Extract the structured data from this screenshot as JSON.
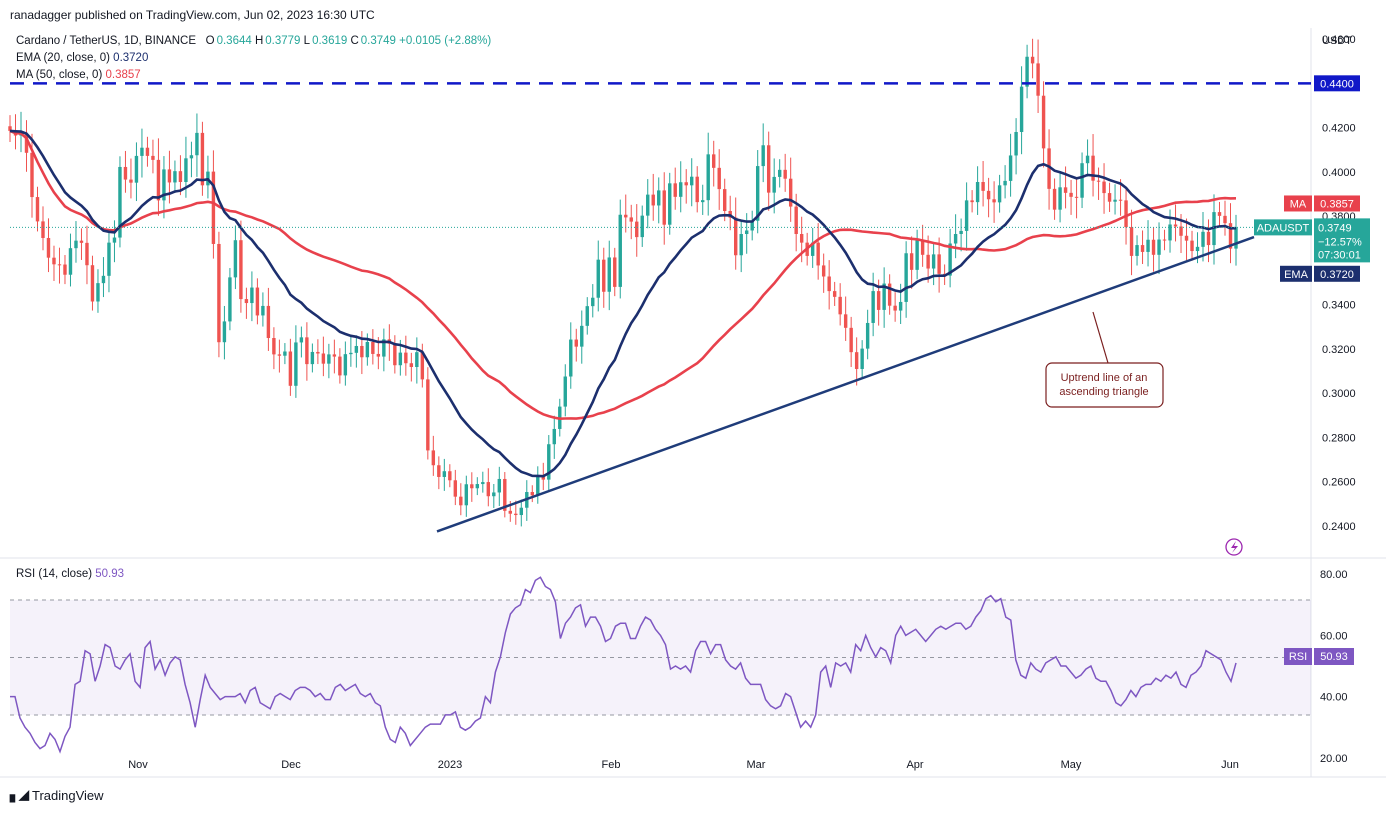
{
  "publisher": "ranadagger published on TradingView.com, Jun 02, 2023 16:30 UTC",
  "colors": {
    "up": "#26a69a",
    "down": "#ef5350",
    "ema": "#1c2f6e",
    "ma": "#e8414c",
    "rsi": "#7e57c2",
    "trend": "#1f3c7a",
    "resistance": "#1018c8",
    "price": "#26a69a"
  },
  "legend": {
    "symbol": "Cardano / TetherUS, 1D, BINANCE",
    "o_label": "O",
    "o": "0.3644",
    "h_label": "H",
    "h": "0.3779",
    "l_label": "L",
    "l": "0.3619",
    "c_label": "C",
    "c": "0.3749",
    "change": "+0.0105 (+2.88%)",
    "ema_label": "EMA (20, close, 0)",
    "ema_value": "0.3720",
    "ma_label": "MA (50, close, 0)",
    "ma_value": "0.3857"
  },
  "rsi_legend": {
    "label": "RSI (14, close)",
    "value": "50.93"
  },
  "footer": {
    "brand": "TradingView"
  },
  "chart_data": {
    "type": "candlestick",
    "symbol": "ADAUSDT",
    "currency": "USDT",
    "timeframe": "1D",
    "ylim": [
      0.23,
      0.465
    ],
    "yticks": [
      "0.4600",
      "0.4200",
      "0.4000",
      "0.3800",
      "0.3400",
      "0.3200",
      "0.3000",
      "0.2800",
      "0.2600",
      "0.2400"
    ],
    "xticks": [
      "Nov",
      "Dec",
      "2023",
      "Feb",
      "Mar",
      "Apr",
      "May",
      "Jun"
    ],
    "close_series": [
      0.4185,
      0.4164,
      0.4171,
      0.4086,
      0.3886,
      0.3776,
      0.3701,
      0.3612,
      0.3582,
      0.3581,
      0.3535,
      0.3655,
      0.3689,
      0.3679,
      0.3578,
      0.3414,
      0.3497,
      0.353,
      0.368,
      0.3703,
      0.4022,
      0.3965,
      0.3951,
      0.4072,
      0.4109,
      0.4072,
      0.4054,
      0.3871,
      0.4011,
      0.3952,
      0.4003,
      0.3954,
      0.4061,
      0.4075,
      0.4176,
      0.3939,
      0.4001,
      0.3674,
      0.323,
      0.3324,
      0.3523,
      0.3691,
      0.3425,
      0.3407,
      0.3477,
      0.3351,
      0.3394,
      0.3249,
      0.3175,
      0.3169,
      0.3188,
      0.3033,
      0.3229,
      0.3252,
      0.3131,
      0.3186,
      0.3179,
      0.3133,
      0.3175,
      0.3165,
      0.308,
      0.3176,
      0.3182,
      0.3213,
      0.3162,
      0.3231,
      0.3177,
      0.3165,
      0.3243,
      0.3223,
      0.3126,
      0.3183,
      0.3135,
      0.3118,
      0.3185,
      0.3062,
      0.2741,
      0.2674,
      0.2621,
      0.2647,
      0.2606,
      0.2532,
      0.2493,
      0.2588,
      0.257,
      0.2589,
      0.2598,
      0.2534,
      0.2551,
      0.2612,
      0.2468,
      0.2455,
      0.2449,
      0.2482,
      0.2553,
      0.2538,
      0.2622,
      0.2609,
      0.2769,
      0.2838,
      0.2939,
      0.3075,
      0.3242,
      0.321,
      0.3304,
      0.3393,
      0.3431,
      0.3603,
      0.3458,
      0.3613,
      0.348,
      0.3806,
      0.3794,
      0.3775,
      0.3705,
      0.3802,
      0.3897,
      0.3848,
      0.3916,
      0.3761,
      0.3948,
      0.3887,
      0.3953,
      0.3939,
      0.3978,
      0.3863,
      0.3872,
      0.4079,
      0.4018,
      0.3922,
      0.3823,
      0.3793,
      0.3623,
      0.3719,
      0.3735,
      0.3779,
      0.4026,
      0.412,
      0.3906,
      0.3977,
      0.4009,
      0.3969,
      0.3843,
      0.3719,
      0.368,
      0.362,
      0.368,
      0.3577,
      0.3527,
      0.3461,
      0.3435,
      0.3356,
      0.3295,
      0.3185,
      0.3109,
      0.3201,
      0.3317,
      0.3461,
      0.3376,
      0.3495,
      0.3395,
      0.3373,
      0.3412,
      0.3632,
      0.3557,
      0.3694,
      0.3625,
      0.3563,
      0.3627,
      0.3539,
      0.3531,
      0.3676,
      0.3719,
      0.3733,
      0.3871,
      0.3863,
      0.3954,
      0.3914,
      0.3876,
      0.3862,
      0.3939,
      0.3959,
      0.4074,
      0.418,
      0.4385,
      0.452,
      0.449,
      0.4344,
      0.4106,
      0.3923,
      0.3829,
      0.393,
      0.3905,
      0.3887,
      0.3883,
      0.4039,
      0.4073,
      0.396,
      0.3956,
      0.3904,
      0.3865,
      0.3874,
      0.3871,
      0.375,
      0.362,
      0.3669,
      0.3638,
      0.3693,
      0.3625,
      0.3694,
      0.369,
      0.3762,
      0.3753,
      0.3711,
      0.3689,
      0.3642,
      0.3661,
      0.3729,
      0.3669,
      0.3818,
      0.3801,
      0.3768,
      0.3653,
      0.3749
    ],
    "ema20": {
      "name": "EMA (20, close, 0)",
      "last": 0.372
    },
    "ma50": {
      "name": "MA (50, close, 0)",
      "last": 0.3857
    },
    "resistance_level": 0.44,
    "trendline": {
      "start": [
        "2022-12-30",
        0.2375
      ],
      "end": [
        "2023-06-03",
        0.3705
      ]
    },
    "price_tags": [
      {
        "label": "0.4400",
        "value": 0.44
      },
      {
        "label": "MA",
        "text": "0.3857",
        "value": 0.3857
      },
      {
        "label": "ADAUSDT",
        "text": "0.3749",
        "sub1": "−12.57%",
        "sub2": "07:30:01",
        "value": 0.3749
      },
      {
        "label": "EMA",
        "text": "0.3720",
        "value": 0.372
      }
    ],
    "annotation": {
      "line1": "Uptrend line of an",
      "line2": "ascending triangle"
    },
    "rsi": {
      "name": "RSI (14, close)",
      "last": 50.93,
      "ylim": [
        16,
        84
      ],
      "yticks": [
        "80.00",
        "60.00",
        "40.00",
        "20.00"
      ],
      "overbought": 70,
      "oversold": 30,
      "last_label": "RSI",
      "last_text": "50.93",
      "values": [
        40,
        40,
        33,
        30,
        28,
        25,
        23,
        24,
        28,
        26,
        22,
        27,
        30,
        44,
        45,
        55,
        54,
        45,
        50,
        57,
        56,
        50,
        49,
        52,
        54,
        45,
        43,
        56,
        58,
        49,
        52,
        47,
        51,
        53,
        52,
        44,
        38,
        30,
        39,
        47,
        43,
        41,
        39,
        40,
        40,
        40,
        41,
        38,
        42,
        43,
        38,
        37,
        36,
        40,
        41,
        40,
        39,
        42,
        43,
        43,
        42,
        40,
        41,
        39,
        39,
        43,
        44,
        42,
        43,
        44,
        41,
        40,
        41,
        38,
        37,
        30,
        26,
        25,
        30,
        28,
        24,
        26,
        28,
        30,
        31,
        31,
        31,
        34,
        34,
        35,
        30,
        29,
        30,
        32,
        33,
        40,
        38,
        48,
        53,
        61,
        67,
        69,
        70,
        75,
        74,
        78,
        79,
        76,
        75,
        71,
        59,
        64,
        66,
        69,
        70,
        63,
        66,
        66,
        63,
        58,
        59,
        63,
        64,
        64,
        59,
        59,
        63,
        66,
        65,
        62,
        60,
        57,
        49,
        50,
        49,
        50,
        48,
        55,
        58,
        58,
        54,
        57,
        57,
        52,
        50,
        49,
        51,
        46,
        44,
        44,
        44,
        39,
        37,
        36,
        37,
        41,
        40,
        35,
        30,
        32,
        30,
        34,
        48,
        50,
        43,
        51,
        50,
        51,
        48,
        57,
        55,
        60,
        56,
        53,
        56,
        55,
        51,
        60,
        63,
        60,
        61,
        62,
        60,
        58,
        60,
        62,
        63,
        62,
        63,
        64,
        64,
        62,
        63,
        66,
        68,
        72,
        73,
        71,
        72,
        66,
        65,
        52,
        47,
        46,
        51,
        49,
        48,
        51,
        52,
        53,
        50,
        50,
        48,
        46,
        47,
        49,
        50,
        46,
        45,
        45,
        42,
        38,
        37,
        39,
        42,
        40,
        43,
        44,
        44,
        46,
        45,
        47,
        46,
        48,
        44,
        43,
        47,
        48,
        50,
        55,
        54,
        53,
        52,
        48,
        45,
        51
      ]
    }
  }
}
